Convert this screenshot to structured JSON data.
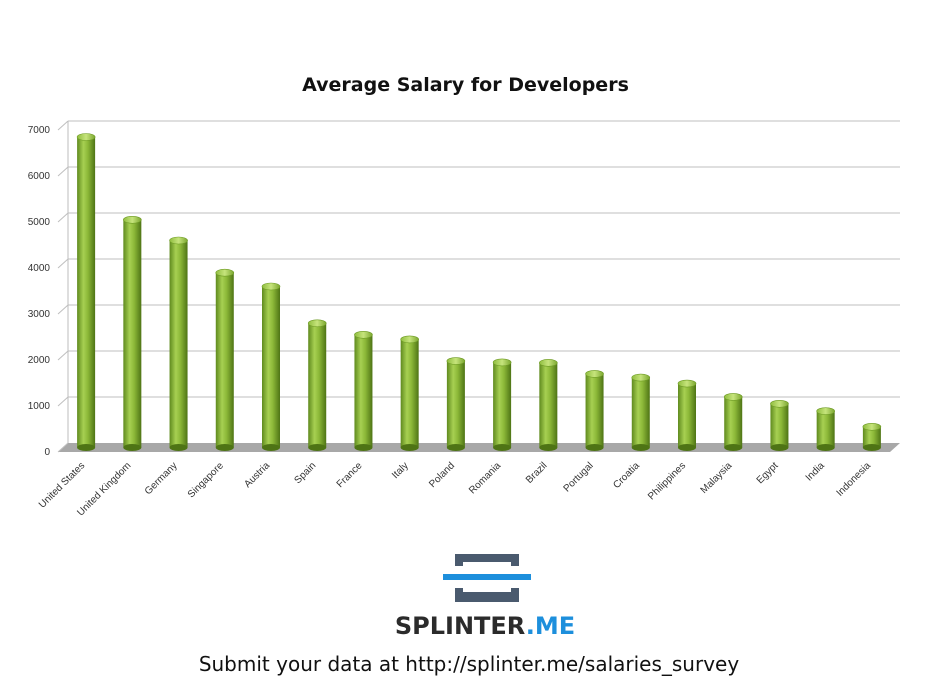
{
  "chart_data": {
    "type": "bar",
    "title": "Average Salary for Developers",
    "xlabel": "",
    "ylabel": "",
    "ylim": [
      0,
      7000
    ],
    "yticks": [
      0,
      1000,
      2000,
      3000,
      4000,
      5000,
      6000,
      7000
    ],
    "grid": true,
    "legend": "none",
    "bar_color": "#8cb838",
    "categories": [
      "United States",
      "United Kingdom",
      "Germany",
      "Singapore",
      "Austria",
      "Spain",
      "France",
      "Italy",
      "Poland",
      "Romania",
      "Brazil",
      "Portugal",
      "Croatia",
      "Philippines",
      "Malaysia",
      "Egypt",
      "India",
      "Indonesia"
    ],
    "values": [
      6750,
      4950,
      4500,
      3800,
      3500,
      2700,
      2450,
      2350,
      1880,
      1850,
      1840,
      1600,
      1520,
      1390,
      1100,
      950,
      790,
      450
    ]
  },
  "brand": {
    "name_part1": "SPLINTER",
    "name_part2": ".ME",
    "primary_color": "#2b2b2b",
    "accent_color": "#1d8fdc"
  },
  "footer": {
    "text": "Submit your data at http://splinter.me/salaries_survey"
  }
}
